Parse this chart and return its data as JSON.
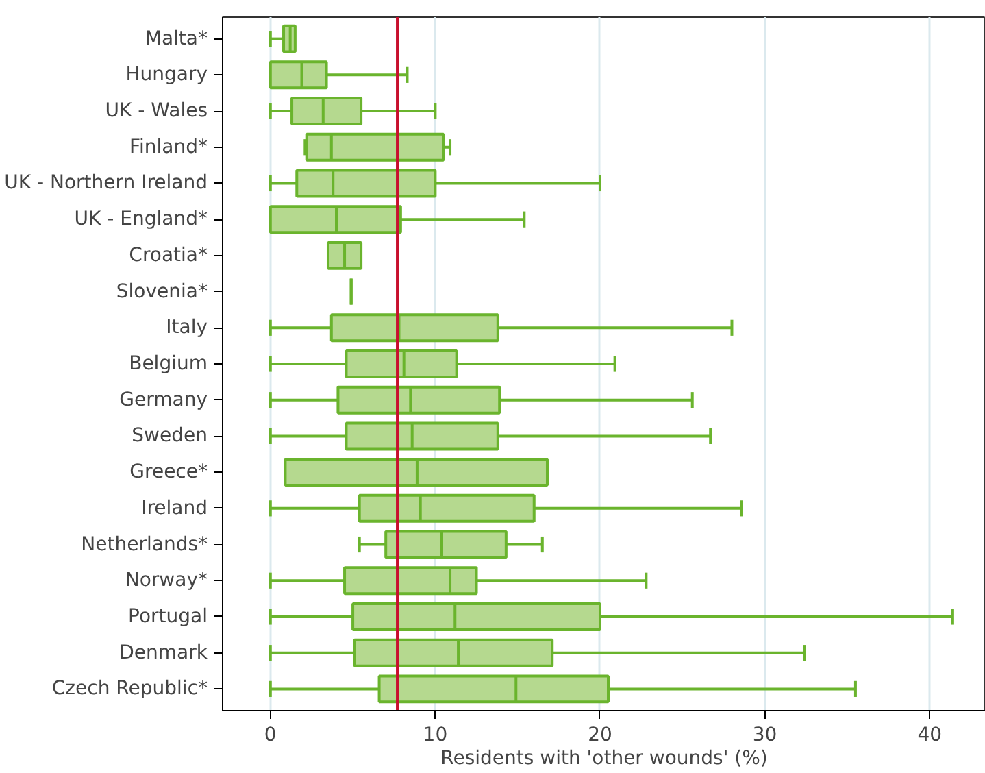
{
  "chart_data": {
    "type": "box",
    "orientation": "horizontal",
    "xlabel": "Residents with 'other wounds' (%)",
    "categories": [
      "Malta*",
      "Hungary",
      "UK - Wales",
      "Finland*",
      "UK - Northern Ireland",
      "UK - England*",
      "Croatia*",
      "Slovenia*",
      "Italy",
      "Belgium",
      "Germany",
      "Sweden",
      "Greece*",
      "Ireland",
      "Netherlands*",
      "Norway*",
      "Portugal",
      "Denmark",
      "Czech Republic*"
    ],
    "boxes": [
      {
        "low": 0,
        "q1": 0.8,
        "median": 1.2,
        "q3": 1.5,
        "high": 1.5
      },
      {
        "low": 0,
        "q1": 0,
        "median": 1.9,
        "q3": 3.4,
        "high": 8.3
      },
      {
        "low": 0,
        "q1": 1.3,
        "median": 3.2,
        "q3": 5.5,
        "high": 10.0
      },
      {
        "low": 2.1,
        "q1": 2.2,
        "median": 3.7,
        "q3": 10.5,
        "high": 10.9
      },
      {
        "low": 0,
        "q1": 1.6,
        "median": 3.8,
        "q3": 10.0,
        "high": 20.0
      },
      {
        "low": 0,
        "q1": 0,
        "median": 4.0,
        "q3": 7.9,
        "high": 15.4
      },
      {
        "low": 3.5,
        "q1": 3.5,
        "median": 4.5,
        "q3": 5.5,
        "high": 5.5
      },
      {
        "low": 4.9,
        "q1": 4.9,
        "median": 4.9,
        "q3": 4.9,
        "high": 4.9
      },
      {
        "low": 0,
        "q1": 3.7,
        "median": 7.8,
        "q3": 13.8,
        "high": 28.0
      },
      {
        "low": 0,
        "q1": 4.6,
        "median": 8.1,
        "q3": 11.3,
        "high": 20.9
      },
      {
        "low": 0,
        "q1": 4.1,
        "median": 8.5,
        "q3": 13.9,
        "high": 25.6
      },
      {
        "low": 0,
        "q1": 4.6,
        "median": 8.6,
        "q3": 13.8,
        "high": 26.7
      },
      {
        "low": 0.9,
        "q1": 0.9,
        "median": 8.9,
        "q3": 16.8,
        "high": 16.8
      },
      {
        "low": 0,
        "q1": 5.4,
        "median": 9.1,
        "q3": 16.0,
        "high": 28.6
      },
      {
        "low": 5.4,
        "q1": 7.0,
        "median": 10.4,
        "q3": 14.3,
        "high": 16.5
      },
      {
        "low": 0,
        "q1": 4.5,
        "median": 10.9,
        "q3": 12.5,
        "high": 22.8
      },
      {
        "low": 0,
        "q1": 5.0,
        "median": 11.2,
        "q3": 20.0,
        "high": 41.4
      },
      {
        "low": 0,
        "q1": 5.1,
        "median": 11.4,
        "q3": 17.1,
        "high": 32.4
      },
      {
        "low": 0,
        "q1": 6.6,
        "median": 14.9,
        "q3": 20.5,
        "high": 35.5
      }
    ],
    "color": "#6ab42d",
    "xlim": [
      -2.9,
      43.4
    ],
    "xticks": [
      0,
      10,
      20,
      30,
      40
    ],
    "grid": "x",
    "ref_lines": [
      {
        "axis": "x",
        "value": 7.7,
        "color": "#c8102e"
      }
    ]
  }
}
